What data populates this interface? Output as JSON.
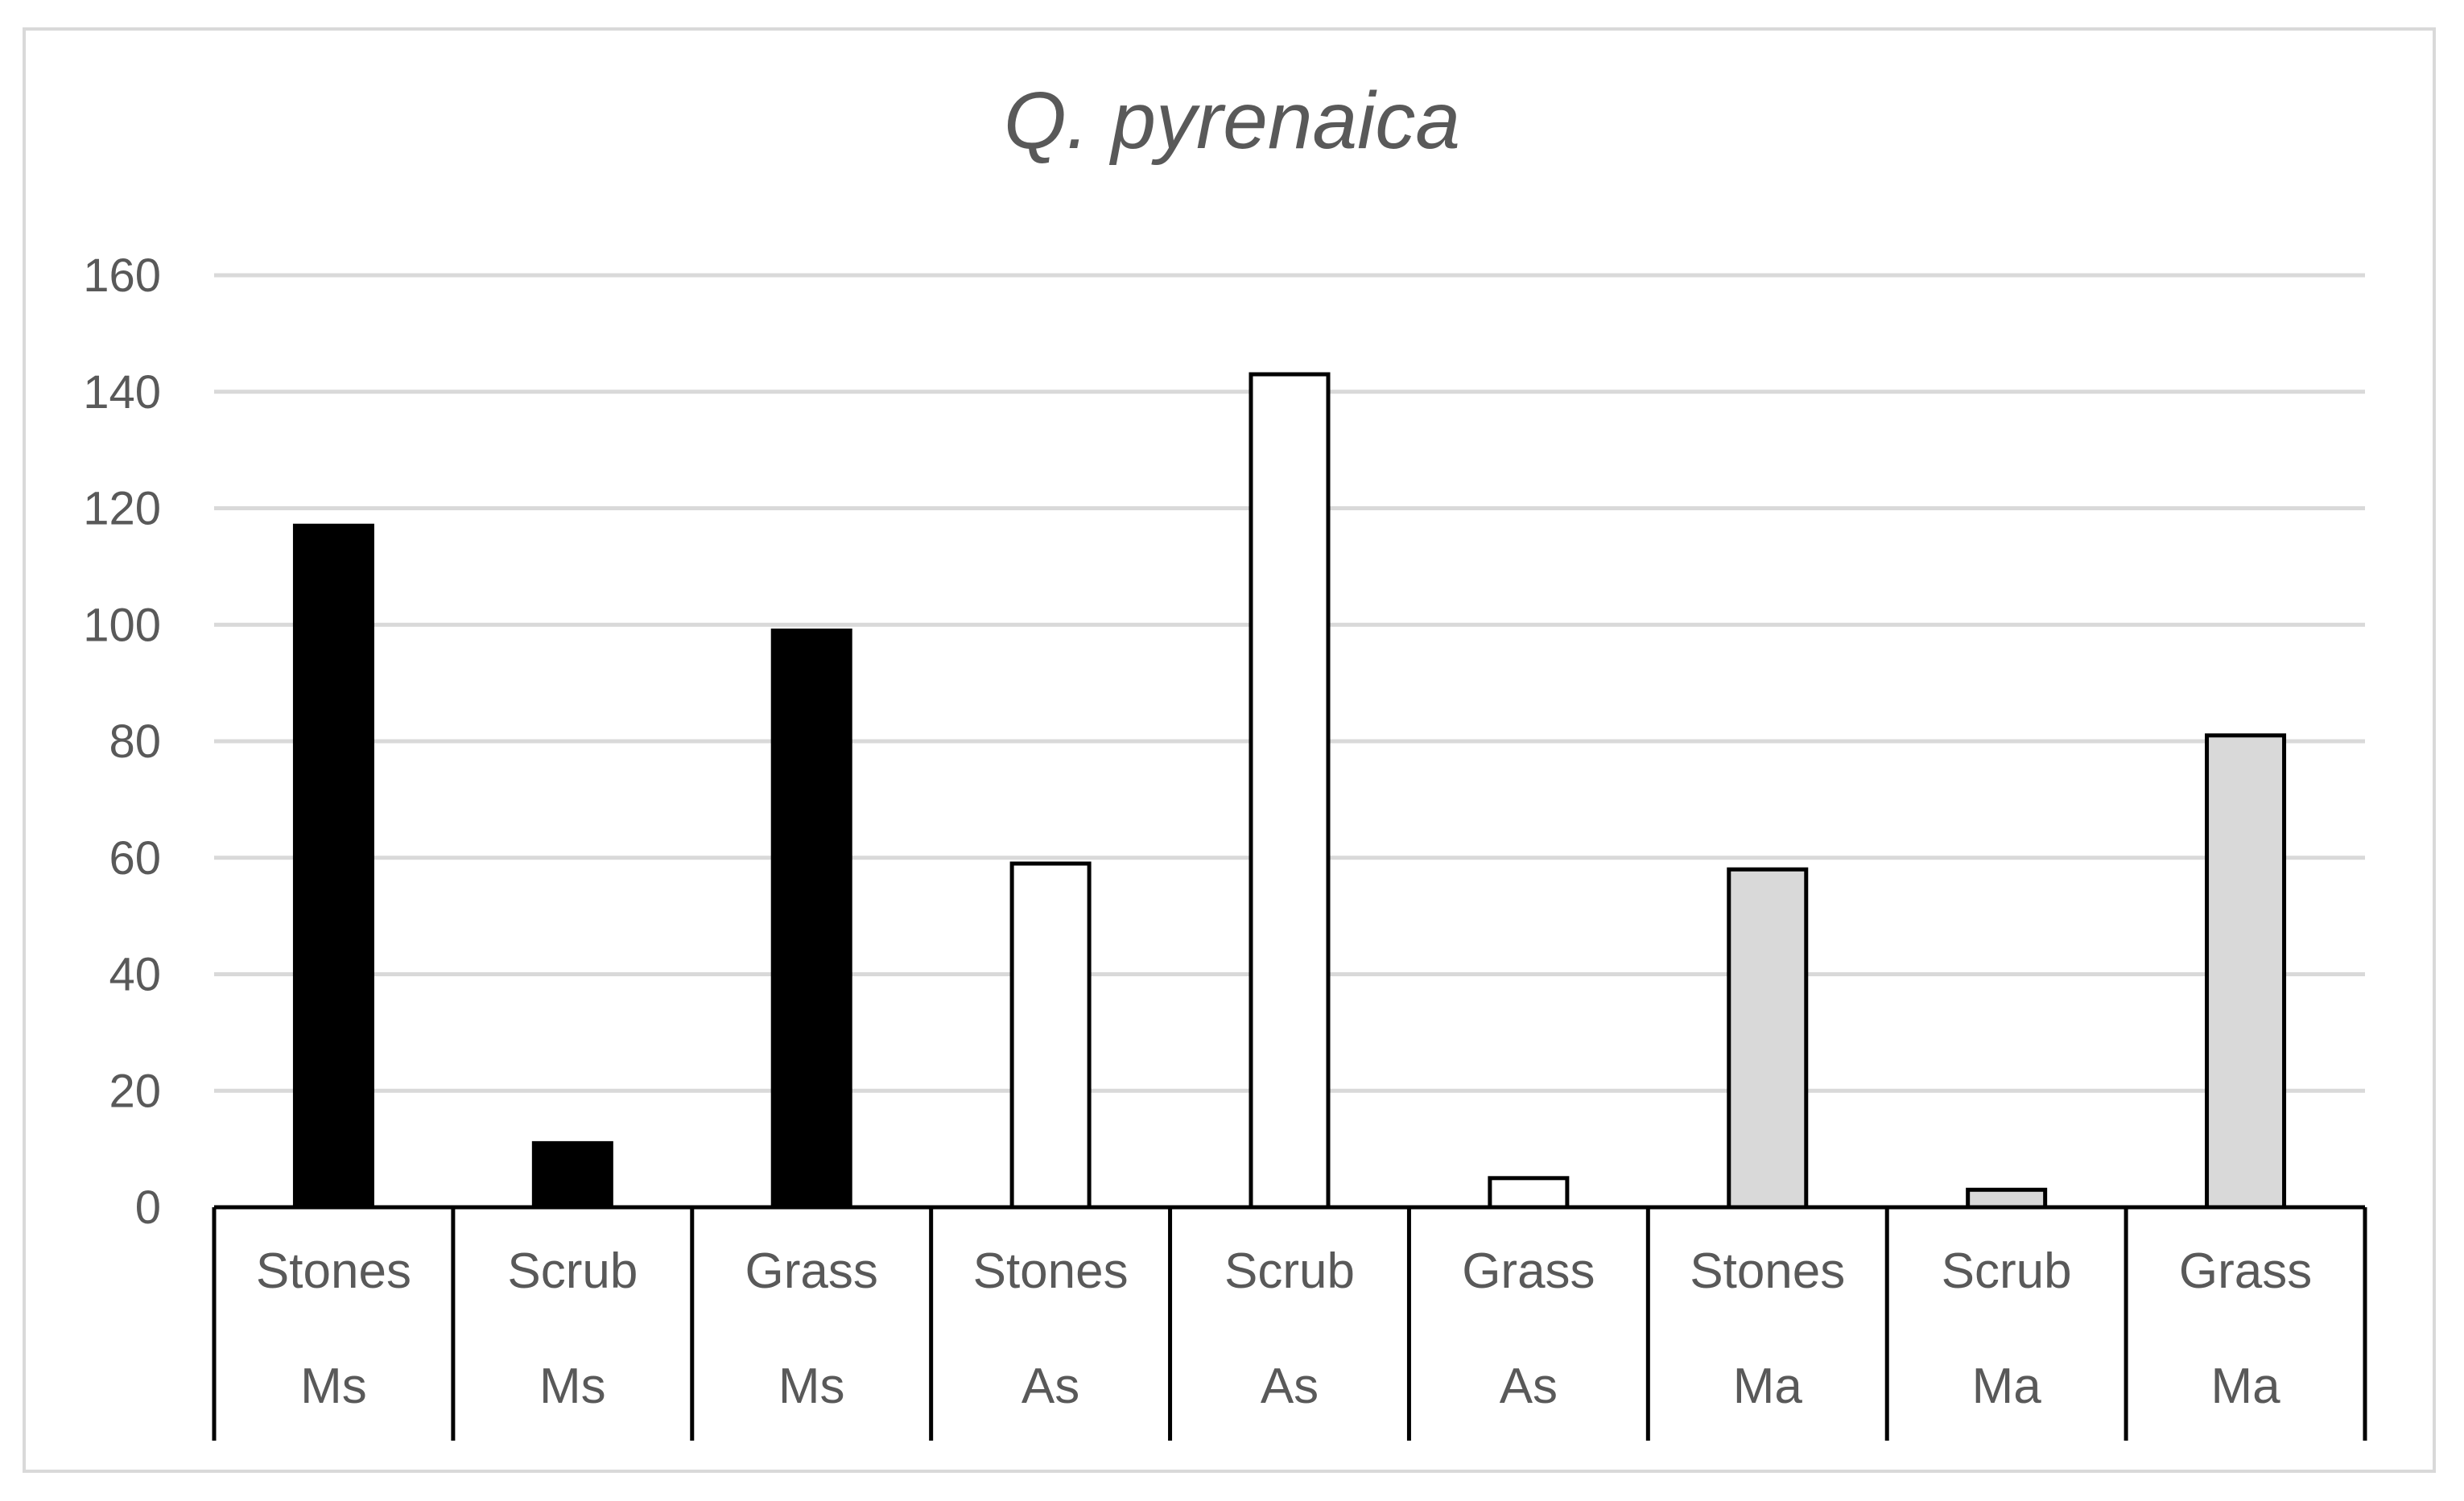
{
  "chart_data": {
    "type": "bar",
    "title": "Q. pyrenaica",
    "xlabel": "",
    "ylabel": "",
    "ylim": [
      0,
      160
    ],
    "yticks": [
      0,
      20,
      40,
      60,
      80,
      100,
      120,
      140,
      160
    ],
    "grid": true,
    "categories": [
      {
        "label": "Stones",
        "group": "Ms"
      },
      {
        "label": "Scrub",
        "group": "Ms"
      },
      {
        "label": "Grass",
        "group": "Ms"
      },
      {
        "label": "Stones",
        "group": "As"
      },
      {
        "label": "Scrub",
        "group": "As"
      },
      {
        "label": "Grass",
        "group": "As"
      },
      {
        "label": "Stones",
        "group": "Ma"
      },
      {
        "label": "Scrub",
        "group": "Ma"
      },
      {
        "label": "Grass",
        "group": "Ma"
      }
    ],
    "values": [
      117,
      11,
      99,
      59,
      143,
      5,
      58,
      3,
      81
    ],
    "group_colors": {
      "Ms": "#000000",
      "As": "#ffffff",
      "Ma": "#d9d9d9"
    },
    "bar_stroke": "#000000",
    "grid_color": "#d9d9d9",
    "text_color": "#595959"
  }
}
